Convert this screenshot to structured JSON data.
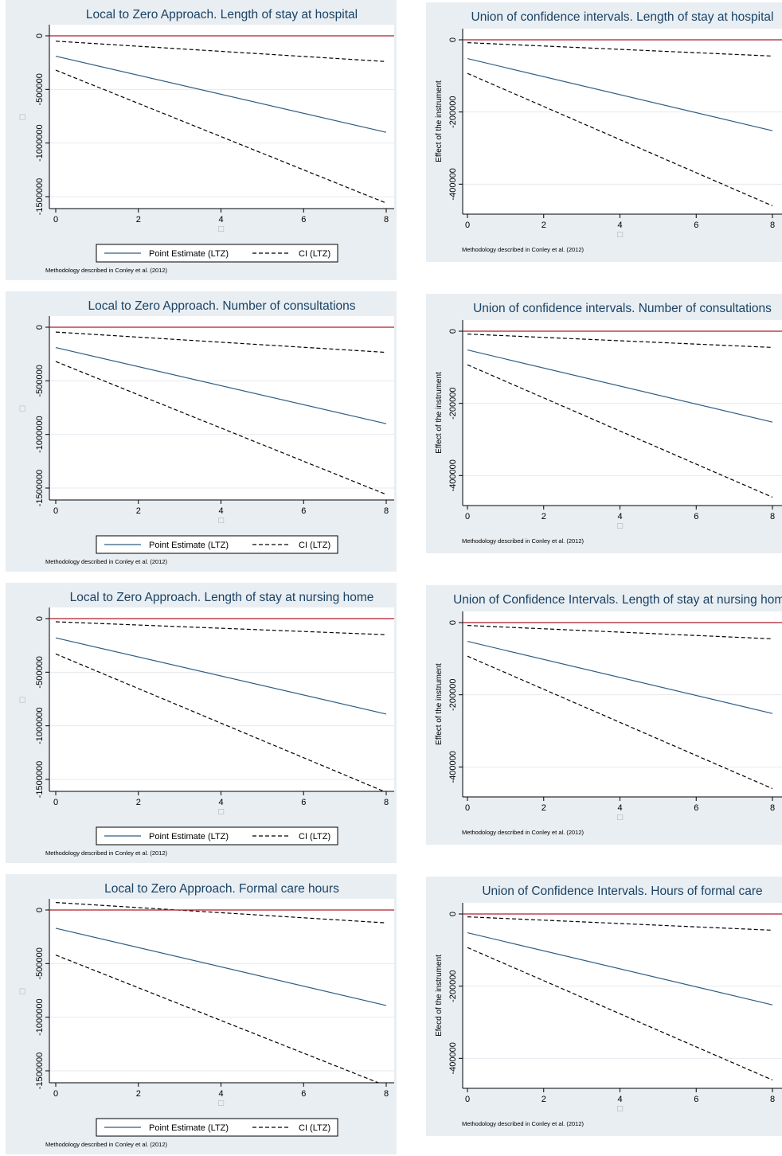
{
  "page": {
    "note": "Methodology described in Conley et al. (2012)",
    "placeholder_glyph": "□"
  },
  "colors": {
    "panel_bg": "#e9eef2",
    "plot_bg": "#ffffff",
    "title": "#1a4366",
    "point_estimate": "#2e5e85",
    "zero_line": "#b01c2e",
    "ci": "#000000",
    "grid": "#e6eaee"
  },
  "legend": {
    "point_estimate": "Point Estimate (LTZ)",
    "ci": "CI (LTZ)"
  },
  "chart_data": [
    {
      "type": "line",
      "panel": "ltz",
      "title": "Local to Zero Approach. Length of stay at hospital",
      "ylabel": "",
      "xlim": [
        0,
        8
      ],
      "ylim": [
        -1500000,
        0
      ],
      "xticks": [
        0,
        2,
        4,
        6,
        8
      ],
      "yticks": [
        0,
        -500000,
        -1000000,
        -1500000
      ],
      "ytick_labels": [
        "0",
        "-500000",
        "-1000000",
        "-1500000"
      ],
      "series": [
        {
          "name": "Point Estimate (LTZ)",
          "style": "solid",
          "x": [
            0,
            8
          ],
          "y": [
            -190000,
            -900000
          ]
        },
        {
          "name": "CI (LTZ)",
          "style": "dashed",
          "x": [
            0,
            8
          ],
          "y": [
            -50000,
            -240000
          ]
        },
        {
          "name": "CI (LTZ)",
          "style": "dashed",
          "x": [
            0,
            8
          ],
          "y": [
            -320000,
            -1560000
          ]
        }
      ],
      "hlines": [
        0
      ]
    },
    {
      "type": "line",
      "panel": "union",
      "title": "Union of confidence intervals. Length of stay at hospital",
      "ylabel": "Effect of the instrument",
      "xlim": [
        0,
        8
      ],
      "ylim": [
        -450000,
        0
      ],
      "xticks": [
        0,
        2,
        4,
        6,
        8
      ],
      "yticks": [
        0,
        -200000,
        -400000
      ],
      "ytick_labels": [
        "0",
        "-200000",
        "-400000"
      ],
      "series": [
        {
          "style": "solid",
          "x": [
            0,
            8
          ],
          "y": [
            -52000,
            -252000
          ]
        },
        {
          "style": "dashed",
          "x": [
            0,
            8
          ],
          "y": [
            -8000,
            -45000
          ]
        },
        {
          "style": "dashed",
          "x": [
            0,
            8
          ],
          "y": [
            -93000,
            -460000
          ]
        }
      ],
      "hlines": [
        0
      ]
    },
    {
      "type": "line",
      "panel": "ltz",
      "title": "Local to Zero Approach. Number of consultations",
      "ylabel": "",
      "xlim": [
        0,
        8
      ],
      "ylim": [
        -1500000,
        0
      ],
      "xticks": [
        0,
        2,
        4,
        6,
        8
      ],
      "yticks": [
        0,
        -500000,
        -1000000,
        -1500000
      ],
      "ytick_labels": [
        "0",
        "-500000",
        "-1000000",
        "-1500000"
      ],
      "series": [
        {
          "name": "Point Estimate (LTZ)",
          "style": "solid",
          "x": [
            0,
            8
          ],
          "y": [
            -190000,
            -900000
          ]
        },
        {
          "name": "CI (LTZ)",
          "style": "dashed",
          "x": [
            0,
            8
          ],
          "y": [
            -45000,
            -235000
          ]
        },
        {
          "name": "CI (LTZ)",
          "style": "dashed",
          "x": [
            0,
            8
          ],
          "y": [
            -320000,
            -1560000
          ]
        }
      ],
      "hlines": [
        0
      ]
    },
    {
      "type": "line",
      "panel": "union",
      "title": "Union of confidence intervals. Number of consultations",
      "ylabel": "Effect of the instrument",
      "xlim": [
        0,
        8
      ],
      "ylim": [
        -450000,
        0
      ],
      "xticks": [
        0,
        2,
        4,
        6,
        8
      ],
      "yticks": [
        0,
        -200000,
        -400000
      ],
      "ytick_labels": [
        "0",
        "-200000",
        "-400000"
      ],
      "series": [
        {
          "style": "solid",
          "x": [
            0,
            8
          ],
          "y": [
            -52000,
            -252000
          ]
        },
        {
          "style": "dashed",
          "x": [
            0,
            8
          ],
          "y": [
            -8000,
            -45000
          ]
        },
        {
          "style": "dashed",
          "x": [
            0,
            8
          ],
          "y": [
            -93000,
            -460000
          ]
        }
      ],
      "hlines": [
        0
      ]
    },
    {
      "type": "line",
      "panel": "ltz",
      "title": "Local to Zero Approach. Length of stay at nursing home",
      "ylabel": "",
      "xlim": [
        0,
        8
      ],
      "ylim": [
        -1500000,
        0
      ],
      "xticks": [
        0,
        2,
        4,
        6,
        8
      ],
      "yticks": [
        0,
        -500000,
        -1000000,
        -1500000
      ],
      "ytick_labels": [
        "0",
        "-500000",
        "-1000000",
        "-1500000"
      ],
      "series": [
        {
          "name": "Point Estimate (LTZ)",
          "style": "solid",
          "x": [
            0,
            8
          ],
          "y": [
            -180000,
            -890000
          ]
        },
        {
          "name": "CI (LTZ)",
          "style": "dashed",
          "x": [
            0,
            8
          ],
          "y": [
            -30000,
            -150000
          ]
        },
        {
          "name": "CI (LTZ)",
          "style": "dashed",
          "x": [
            0,
            8
          ],
          "y": [
            -330000,
            -1620000
          ]
        }
      ],
      "hlines": [
        0
      ]
    },
    {
      "type": "line",
      "panel": "union",
      "title": "Union of Confidence Intervals. Length of stay at nursing home",
      "ylabel": "Effect of the instrument",
      "xlim": [
        0,
        8
      ],
      "ylim": [
        -450000,
        0
      ],
      "xticks": [
        0,
        2,
        4,
        6,
        8
      ],
      "yticks": [
        0,
        -200000,
        -400000
      ],
      "ytick_labels": [
        "0",
        "-200000",
        "-400000"
      ],
      "series": [
        {
          "style": "solid",
          "x": [
            0,
            8
          ],
          "y": [
            -52000,
            -252000
          ]
        },
        {
          "style": "dashed",
          "x": [
            0,
            8
          ],
          "y": [
            -8000,
            -45000
          ]
        },
        {
          "style": "dashed",
          "x": [
            0,
            8
          ],
          "y": [
            -93000,
            -460000
          ]
        }
      ],
      "hlines": [
        0
      ]
    },
    {
      "type": "line",
      "panel": "ltz",
      "title": "Local to Zero Approach. Formal care hours",
      "ylabel": "",
      "xlim": [
        0,
        8
      ],
      "ylim": [
        -1500000,
        0
      ],
      "xticks": [
        0,
        2,
        4,
        6,
        8
      ],
      "yticks": [
        0,
        -500000,
        -1000000,
        -1500000
      ],
      "ytick_labels": [
        "0",
        "-500000",
        "-1000000",
        "-1500000"
      ],
      "series": [
        {
          "name": "Point Estimate (LTZ)",
          "style": "solid",
          "x": [
            0,
            8
          ],
          "y": [
            -170000,
            -890000
          ]
        },
        {
          "name": "CI (LTZ)",
          "style": "dashed",
          "x": [
            0,
            8
          ],
          "y": [
            70000,
            -120000
          ]
        },
        {
          "name": "CI (LTZ)",
          "style": "dashed",
          "x": [
            0,
            8
          ],
          "y": [
            -420000,
            -1640000
          ]
        }
      ],
      "hlines": [
        0
      ]
    },
    {
      "type": "line",
      "panel": "union",
      "title": "Union of Confidence Intervals. Hours of formal care",
      "ylabel": "Efecd of the instrument",
      "xlim": [
        0,
        8
      ],
      "ylim": [
        -450000,
        0
      ],
      "xticks": [
        0,
        2,
        4,
        6,
        8
      ],
      "yticks": [
        0,
        -200000,
        -400000
      ],
      "ytick_labels": [
        "0",
        "-200000",
        "-400000"
      ],
      "series": [
        {
          "style": "solid",
          "x": [
            0,
            8
          ],
          "y": [
            -52000,
            -252000
          ]
        },
        {
          "style": "dashed",
          "x": [
            0,
            8
          ],
          "y": [
            -8000,
            -45000
          ]
        },
        {
          "style": "dashed",
          "x": [
            0,
            8
          ],
          "y": [
            -93000,
            -460000
          ]
        }
      ],
      "hlines": [
        0
      ]
    }
  ]
}
